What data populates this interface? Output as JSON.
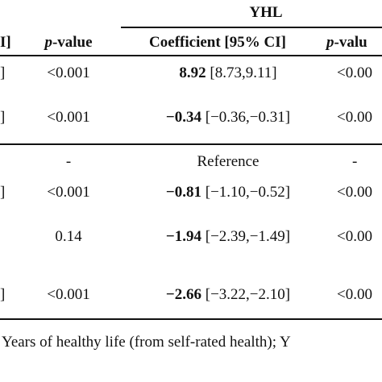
{
  "table": {
    "group_header": "YHL",
    "columns": [
      "I]",
      "p-value",
      "Coefficient [95% CI]",
      "p-valu"
    ],
    "rows": [
      [
        "]",
        "<0.001",
        {
          "estimate": "8.92",
          "ci": "[8.73,9.11]"
        },
        "<0.00"
      ],
      [
        "]",
        "<0.001",
        {
          "estimate": "−0.34",
          "ci": "[−0.36,−0.31]"
        },
        "<0.00"
      ],
      [
        "",
        "-",
        "Reference",
        "-"
      ],
      [
        "]",
        "<0.001",
        {
          "estimate": "−0.81",
          "ci": "[−1.10,−0.52]"
        },
        "<0.00"
      ],
      [
        "",
        "0.14",
        {
          "estimate": "−1.94",
          "ci": "[−2.39,−1.49]"
        },
        "<0.00"
      ],
      [
        "]",
        "<0.001",
        {
          "estimate": "−2.66",
          "ci": "[−3.22,−2.10]"
        },
        "<0.00"
      ]
    ]
  },
  "footnote": "Years of healthy life (from self-rated health); Y"
}
